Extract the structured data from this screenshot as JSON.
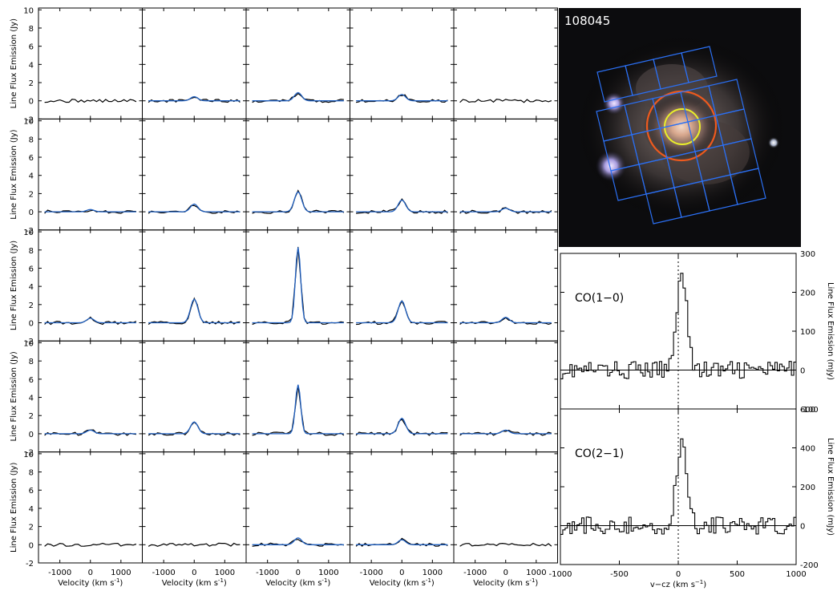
{
  "grid": {
    "ylabel": "Line Flux Emission (Jy)",
    "xlabel": "Velocity (km s",
    "xlabel_sup": "-1",
    "xlabel_tail": ")",
    "x_ticks": [
      -1000,
      0,
      1000
    ],
    "y_ticks": [
      -2,
      0,
      2,
      4,
      6,
      8,
      10
    ],
    "xlim": [
      -1700,
      1700
    ],
    "ylim": [
      -2,
      10.2
    ],
    "model_color": "#1f5fbf",
    "data_color": "#000000"
  },
  "chart_data": [
    {
      "type": "line",
      "layout": "5x5 grid of spectra (rows top to bottom, columns left to right)",
      "x_units": "km/s",
      "y_units": "Jy",
      "peaks": [
        [
          0.0,
          0.45,
          0.9,
          0.7,
          0.0
        ],
        [
          0.25,
          0.85,
          2.2,
          1.3,
          0.4
        ],
        [
          0.5,
          2.6,
          8.3,
          2.4,
          0.6
        ],
        [
          0.4,
          1.3,
          5.4,
          1.7,
          0.4
        ],
        [
          0.0,
          0.0,
          0.75,
          0.55,
          0.0
        ]
      ],
      "has_model": [
        [
          false,
          true,
          true,
          true,
          false
        ],
        [
          true,
          true,
          true,
          true,
          true
        ],
        [
          true,
          true,
          true,
          true,
          true
        ],
        [
          true,
          true,
          true,
          true,
          true
        ],
        [
          false,
          false,
          true,
          true,
          false
        ]
      ]
    },
    {
      "type": "step",
      "label": "CO(1−0)",
      "ylabel": "Line Flux Emission (mJy)",
      "ylim": [
        -100,
        300
      ],
      "y_ticks": [
        -100,
        0,
        100,
        200,
        300
      ],
      "xlim": [
        -1000,
        1000
      ],
      "peak": 260
    },
    {
      "type": "step",
      "label": "CO(2−1)",
      "ylabel": "Line Flux Emission (mJy)",
      "xlabel": "v−cz (km s",
      "xlabel_sup": "−1",
      "xlabel_tail": ")",
      "ylim": [
        -200,
        600
      ],
      "y_ticks": [
        -200,
        0,
        200,
        400,
        600
      ],
      "xlim": [
        -1000,
        1000
      ],
      "x_ticks": [
        -1000,
        -500,
        0,
        500,
        1000
      ],
      "peak": 440
    }
  ],
  "image": {
    "galaxy_id": "108045"
  }
}
